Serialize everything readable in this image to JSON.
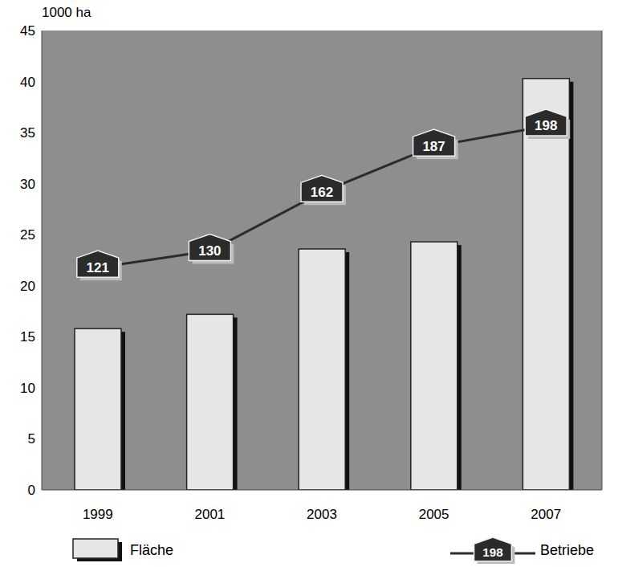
{
  "chart_data": {
    "type": "bar",
    "y_label": "1000 ha",
    "categories": [
      "1999",
      "2001",
      "2003",
      "2005",
      "2007"
    ],
    "series": [
      {
        "name": "Fläche",
        "type": "bar",
        "color": "#e6e6e6",
        "values": [
          15.8,
          17.2,
          23.6,
          24.3,
          40.3
        ]
      },
      {
        "name": "Betriebe",
        "type": "line",
        "axis": "y2",
        "color": "#2b2b2b",
        "values": [
          121,
          130,
          162,
          187,
          198
        ],
        "data_labels": true
      }
    ],
    "ylim": [
      0,
      45
    ],
    "yticks": [
      0,
      5,
      10,
      15,
      20,
      25,
      30,
      35,
      40,
      45
    ],
    "y2lim": [
      0,
      250
    ],
    "y2ticks": [],
    "grid": false,
    "legend": "bottom"
  }
}
